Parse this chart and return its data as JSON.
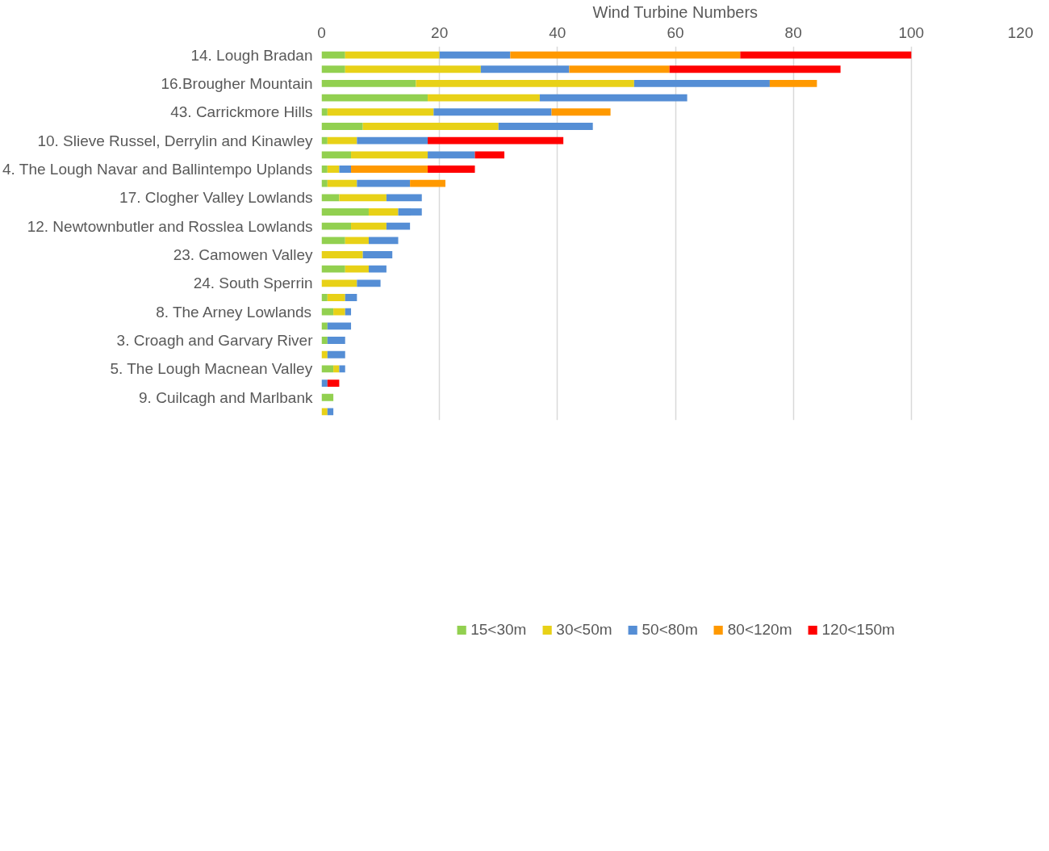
{
  "chart_data": {
    "type": "bar",
    "orientation": "horizontal",
    "stacked": true,
    "xlabel": "Wind Turbine Numbers",
    "categories": [
      "14. Lough Bradan",
      null,
      "16.Brougher Mountain",
      null,
      "43. Carrickmore Hills",
      null,
      "10. Slieve Russel, Derrylin and Kinawley",
      null,
      "4. The Lough Navar and Ballintempo Uplands",
      null,
      "17. Clogher Valley Lowlands",
      null,
      "12. Newtownbutler and Rosslea Lowlands",
      null,
      "23. Camowen Valley",
      null,
      "24. South Sperrin",
      null,
      "8. The Arney Lowlands",
      null,
      "3. Croagh and Garvary River",
      null,
      "5. The Lough Macnean Valley",
      null,
      "9. Cuilcagh and Marlbank",
      null
    ],
    "series": [
      {
        "name": "15<30m",
        "color": "#92d050",
        "values": [
          4,
          4,
          16,
          18,
          1,
          7,
          1,
          5,
          1,
          1,
          3,
          8,
          5,
          4,
          0,
          4,
          0,
          1,
          2,
          1,
          1,
          0,
          2,
          0,
          2,
          0
        ]
      },
      {
        "name": "30<50m",
        "color": "#e8d117",
        "values": [
          16,
          23,
          37,
          19,
          18,
          23,
          5,
          13,
          2,
          5,
          8,
          5,
          6,
          4,
          7,
          4,
          6,
          3,
          2,
          0,
          0,
          1,
          1,
          0,
          0,
          1
        ]
      },
      {
        "name": "50<80m",
        "color": "#558ed5",
        "values": [
          12,
          15,
          23,
          25,
          20,
          16,
          12,
          8,
          2,
          9,
          6,
          4,
          4,
          5,
          5,
          3,
          4,
          2,
          1,
          4,
          3,
          3,
          1,
          1,
          0,
          1
        ]
      },
      {
        "name": "80<120m",
        "color": "#ff9900",
        "values": [
          39,
          17,
          8,
          0,
          10,
          0,
          0,
          0,
          13,
          6,
          0,
          0,
          0,
          0,
          0,
          0,
          0,
          0,
          0,
          0,
          0,
          0,
          0,
          0,
          0,
          0
        ]
      },
      {
        "name": "120<150m",
        "color": "#ff0000",
        "values": [
          29,
          29,
          0,
          0,
          0,
          0,
          23,
          5,
          8,
          0,
          0,
          0,
          0,
          0,
          0,
          0,
          0,
          0,
          0,
          0,
          0,
          0,
          0,
          2,
          0,
          0
        ]
      }
    ],
    "xlim": [
      0,
      120
    ],
    "xticks": [
      0,
      20,
      40,
      60,
      80,
      100,
      120
    ],
    "grid": "x",
    "legend": "bottom"
  }
}
